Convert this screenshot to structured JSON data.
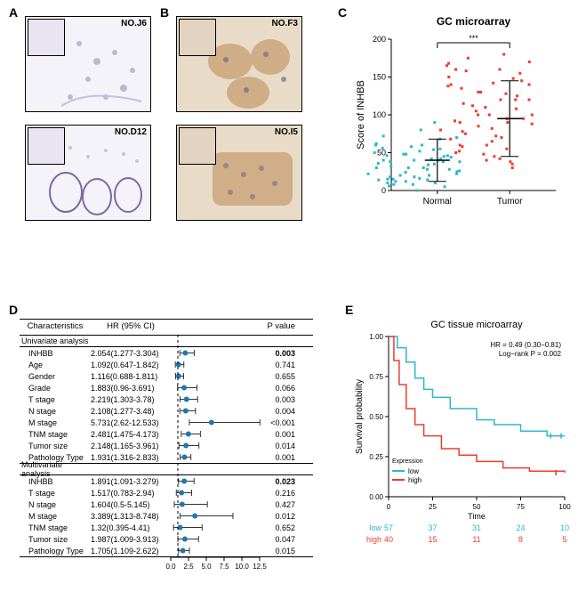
{
  "panels": {
    "A": {
      "label": "A",
      "images": [
        {
          "id": "NO.J6"
        },
        {
          "id": "NO.D12"
        }
      ]
    },
    "B": {
      "label": "B",
      "images": [
        {
          "id": "NO.F3"
        },
        {
          "id": "NO.I5"
        }
      ]
    },
    "C": {
      "label": "C",
      "chart": {
        "type": "scatter",
        "title": "GC microarray",
        "sig_label": "***",
        "ylabel": "Score of INHBB",
        "ylim": [
          0,
          200
        ],
        "ytick_step": 50,
        "groups": [
          {
            "name": "Normal",
            "color": "#2bb8ce",
            "mean": 40,
            "sd": 28,
            "points": [
              18,
              22,
              0,
              55,
              42,
              10,
              38,
              60,
              72,
              15,
              8,
              48,
              30,
              40,
              12,
              90,
              25,
              35,
              45,
              20,
              28,
              68,
              5,
              15,
              50,
              40,
              32,
              22,
              60,
              10,
              38,
              46,
              14,
              54,
              30,
              42,
              26,
              70,
              18,
              48,
              12,
              58,
              6,
              36,
              20,
              44,
              28,
              40,
              80,
              16,
              34,
              52,
              24,
              8,
              46,
              30,
              38,
              14,
              56,
              62
            ]
          },
          {
            "name": "Tumor",
            "color": "#ef3b2c",
            "mean": 95,
            "sd": 50,
            "points": [
              60,
              140,
              100,
              30,
              180,
              90,
              120,
              45,
              160,
              75,
              110,
              85,
              150,
              40,
              130,
              95,
              170,
              55,
              108,
              70,
              145,
              35,
              125,
              90,
              165,
              50,
              115,
              80,
              138,
              60,
              100,
              155,
              42,
              128,
              72,
              148,
              88,
              120,
              58,
              105,
              175,
              48,
              135,
              68,
              112,
              95,
              160,
              38,
              142,
              82,
              120,
              65,
              100,
              158,
              52,
              130,
              78,
              140,
              92,
              168
            ]
          }
        ]
      }
    },
    "D": {
      "label": "D",
      "forest": {
        "xaxis_ticks": [
          0,
          2.5,
          5,
          7.5,
          10,
          12.5
        ],
        "xmax": 12.5,
        "cols": [
          "Characteristics",
          "HR (95% CI)",
          "P value"
        ],
        "marker_color": "#1f77b4",
        "sections": [
          {
            "name": "Univariate analysis",
            "rows": [
              {
                "char": "INHBB",
                "hr": "2.054(1.277-3.304)",
                "est": 2.054,
                "lo": 1.277,
                "hi": 3.304,
                "p": "0.003",
                "bold": true
              },
              {
                "char": "Age",
                "hr": "1.092(0.647-1.842)",
                "est": 1.092,
                "lo": 0.647,
                "hi": 1.842,
                "p": "0.741"
              },
              {
                "char": "Gender",
                "hr": "1.116(0.688-1.811)",
                "est": 1.116,
                "lo": 0.688,
                "hi": 1.811,
                "p": "0.655"
              },
              {
                "char": "Grade",
                "hr": "1.883(0.96-3.691)",
                "est": 1.883,
                "lo": 0.96,
                "hi": 3.691,
                "p": "0.066"
              },
              {
                "char": "T stage",
                "hr": "2.219(1.303-3.78)",
                "est": 2.219,
                "lo": 1.303,
                "hi": 3.78,
                "p": "0.003"
              },
              {
                "char": "N stage",
                "hr": "2.108(1.277-3.48)",
                "est": 2.108,
                "lo": 1.277,
                "hi": 3.48,
                "p": "0.004"
              },
              {
                "char": "M stage",
                "hr": "5.731(2.62-12.533)",
                "est": 5.731,
                "lo": 2.62,
                "hi": 12.533,
                "p": "<0.001"
              },
              {
                "char": "TNM stage",
                "hr": "2.481(1.475-4.173)",
                "est": 2.481,
                "lo": 1.475,
                "hi": 4.173,
                "p": "0.001"
              },
              {
                "char": "Tumor size",
                "hr": "2.148(1.165-3.961)",
                "est": 2.148,
                "lo": 1.165,
                "hi": 3.961,
                "p": "0.014"
              },
              {
                "char": "Pathology Type",
                "hr": "1.931(1.316-2.833)",
                "est": 1.931,
                "lo": 1.316,
                "hi": 2.833,
                "p": "0.001"
              }
            ]
          },
          {
            "name": "Multivariate analysis",
            "rows": [
              {
                "char": "INHBB",
                "hr": "1.891(1.091-3.279)",
                "est": 1.891,
                "lo": 1.091,
                "hi": 3.279,
                "p": "0.023",
                "bold": true
              },
              {
                "char": "T stage",
                "hr": "1.517(0.783-2.94)",
                "est": 1.517,
                "lo": 0.783,
                "hi": 2.94,
                "p": "0.216"
              },
              {
                "char": "N stage",
                "hr": "1.604(0.5-5.145)",
                "est": 1.604,
                "lo": 0.5,
                "hi": 5.145,
                "p": "0.427"
              },
              {
                "char": "M stage",
                "hr": "3.389(1.313-8.748)",
                "est": 3.389,
                "lo": 1.313,
                "hi": 8.748,
                "p": "0.012"
              },
              {
                "char": "TNM stage",
                "hr": "1.32(0.395-4.41)",
                "est": 1.32,
                "lo": 0.395,
                "hi": 4.41,
                "p": "0.652"
              },
              {
                "char": "Tumor size",
                "hr": "1.987(1.009-3.913)",
                "est": 1.987,
                "lo": 1.009,
                "hi": 3.913,
                "p": "0.047"
              },
              {
                "char": "Pathology Type",
                "hr": "1.705(1.109-2.622)",
                "est": 1.705,
                "lo": 1.109,
                "hi": 2.622,
                "p": "0.015"
              }
            ]
          }
        ]
      }
    },
    "E": {
      "label": "E",
      "km": {
        "title": "GC tissue microarray",
        "hr_text": "HR = 0.49 (0.30−0.81)",
        "logrank_text": "Log−rank P = 0.002",
        "ylabel": "Survival probability",
        "xlabel": "Time",
        "xlim": [
          0,
          100
        ],
        "xticks": [
          0,
          25,
          50,
          75,
          100
        ],
        "ylim": [
          0,
          1
        ],
        "yticks": [
          0,
          0.25,
          0.5,
          0.75,
          1
        ],
        "legend_title": "Expression",
        "curves": [
          {
            "name": "low",
            "color": "#2bb8ce",
            "pts": [
              [
                0,
                1
              ],
              [
                5,
                0.93
              ],
              [
                10,
                0.84
              ],
              [
                15,
                0.74
              ],
              [
                20,
                0.67
              ],
              [
                25,
                0.62
              ],
              [
                35,
                0.55
              ],
              [
                50,
                0.48
              ],
              [
                60,
                0.45
              ],
              [
                75,
                0.41
              ],
              [
                90,
                0.38
              ],
              [
                100,
                0.38
              ]
            ],
            "censor": [
              [
                92,
                0.38
              ],
              [
                98,
                0.38
              ]
            ]
          },
          {
            "name": "high",
            "color": "#ef3b2c",
            "pts": [
              [
                0,
                1
              ],
              [
                3,
                0.85
              ],
              [
                6,
                0.7
              ],
              [
                10,
                0.55
              ],
              [
                15,
                0.45
              ],
              [
                20,
                0.38
              ],
              [
                30,
                0.3
              ],
              [
                40,
                0.26
              ],
              [
                50,
                0.22
              ],
              [
                65,
                0.18
              ],
              [
                80,
                0.16
              ],
              [
                100,
                0.15
              ]
            ],
            "censor": [
              [
                95,
                0.15
              ]
            ]
          }
        ],
        "risk_table": {
          "rows": [
            {
              "name": "low",
              "color": "#2bb8ce",
              "vals": [
                57,
                37,
                31,
                24,
                10
              ]
            },
            {
              "name": "high",
              "color": "#ef3b2c",
              "vals": [
                40,
                15,
                11,
                8,
                5
              ]
            }
          ]
        }
      }
    }
  }
}
